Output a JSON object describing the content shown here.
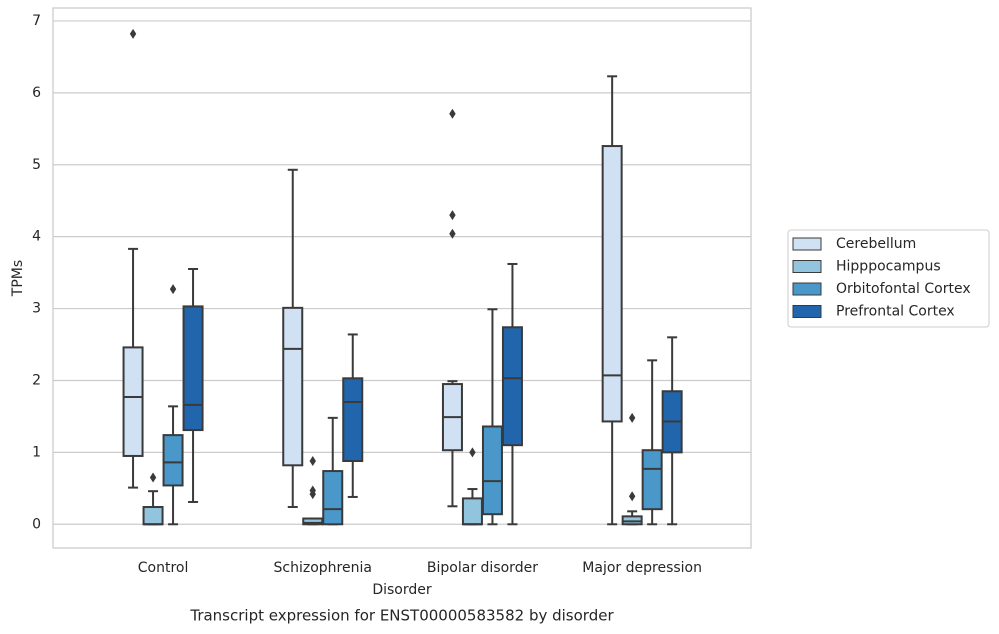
{
  "chart_data": {
    "type": "boxplot",
    "caption": "Transcript expression for ENST00000583582 by disorder",
    "xlabel": "Disorder",
    "ylabel": "TPMs",
    "categories": [
      "Control",
      "Schizophrenia",
      "Bipolar disorder",
      "Major depression"
    ],
    "ylim": [
      -0.33,
      7.18
    ],
    "yticks": [
      0,
      1,
      2,
      3,
      4,
      5,
      6,
      7
    ],
    "grid": true,
    "legend": "right",
    "series": [
      {
        "name": "Cerebellum",
        "color": "#cfe1f2",
        "values": [
          {
            "whislo": 0.51,
            "q1": 0.95,
            "med": 1.77,
            "q3": 2.46,
            "whishi": 3.83,
            "fliers": [
              6.82
            ]
          },
          {
            "whislo": 0.24,
            "q1": 0.82,
            "med": 2.44,
            "q3": 3.01,
            "whishi": 4.93,
            "fliers": []
          },
          {
            "whislo": 0.25,
            "q1": 1.03,
            "med": 1.49,
            "q3": 1.95,
            "whishi": 1.99,
            "fliers": [
              4.04,
              4.3,
              5.71
            ]
          },
          {
            "whislo": 0,
            "q1": 1.43,
            "med": 2.07,
            "q3": 5.26,
            "whishi": 6.23,
            "fliers": []
          }
        ]
      },
      {
        "name": "Hipppocampus",
        "color": "#93c4de",
        "values": [
          {
            "whislo": 0,
            "q1": 0,
            "med": 0,
            "q3": 0.24,
            "whishi": 0.46,
            "fliers": [
              0.65
            ]
          },
          {
            "whislo": 0,
            "q1": 0,
            "med": 0.02,
            "q3": 0.08,
            "whishi": 0.08,
            "fliers": [
              0.42,
              0.47,
              0.88
            ]
          },
          {
            "whislo": 0,
            "q1": 0,
            "med": 0,
            "q3": 0.36,
            "whishi": 0.49,
            "fliers": [
              1.0
            ]
          },
          {
            "whislo": 0,
            "q1": 0,
            "med": 0.04,
            "q3": 0.11,
            "whishi": 0.18,
            "fliers": [
              0.39,
              1.48
            ]
          }
        ]
      },
      {
        "name": "Orbitofontal Cortex",
        "color": "#4a98c9",
        "values": [
          {
            "whislo": 0,
            "q1": 0.54,
            "med": 0.86,
            "q3": 1.24,
            "whishi": 1.64,
            "fliers": [
              3.27
            ]
          },
          {
            "whislo": 0,
            "q1": 0,
            "med": 0.21,
            "q3": 0.74,
            "whishi": 1.48,
            "fliers": []
          },
          {
            "whislo": 0,
            "q1": 0.14,
            "med": 0.6,
            "q3": 1.36,
            "whishi": 2.99,
            "fliers": []
          },
          {
            "whislo": 0,
            "q1": 0.21,
            "med": 0.77,
            "q3": 1.03,
            "whishi": 2.28,
            "fliers": []
          }
        ]
      },
      {
        "name": "Prefrontal Cortex",
        "color": "#2166ac",
        "values": [
          {
            "whislo": 0.31,
            "q1": 1.31,
            "med": 1.66,
            "q3": 3.03,
            "whishi": 3.55,
            "fliers": []
          },
          {
            "whislo": 0.38,
            "q1": 0.88,
            "med": 1.7,
            "q3": 2.03,
            "whishi": 2.64,
            "fliers": []
          },
          {
            "whislo": 0,
            "q1": 1.1,
            "med": 2.03,
            "q3": 2.74,
            "whishi": 3.62,
            "fliers": []
          },
          {
            "whislo": 0,
            "q1": 1.0,
            "med": 1.43,
            "q3": 1.85,
            "whishi": 2.6,
            "fliers": []
          }
        ]
      }
    ]
  }
}
